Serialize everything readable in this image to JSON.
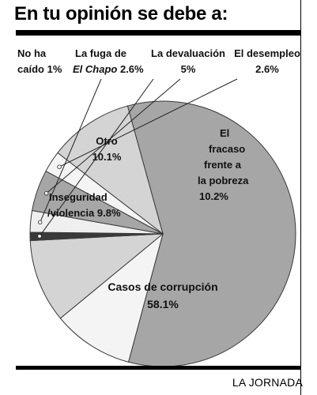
{
  "title": "En tu opinión se debe a:",
  "credit": "LA JORNADA",
  "chart_data": {
    "type": "pie",
    "title": "En tu opinión se debe a:",
    "slices": [
      {
        "label_lines": [
          "Casos de corrupción"
        ],
        "value_text": "58.1%",
        "value": 58.1,
        "color": "#a6a6a6"
      },
      {
        "label_lines": [
          "Inseguridad",
          "/violencia"
        ],
        "value_text": "9.8%",
        "value": 9.8,
        "color": "#f4f4f4"
      },
      {
        "label_lines": [
          "Otro"
        ],
        "value_text": "10.1%",
        "value": 10.1,
        "color": "#d4d4d4"
      },
      {
        "label_lines": [
          "No ha",
          "caído"
        ],
        "value_text": "1%",
        "value": 1,
        "color": "#3a3a3a"
      },
      {
        "label_lines": [
          "La fuga de",
          "El Chapo"
        ],
        "value_text": "2.6%",
        "value": 2.6,
        "color": "#efefef"
      },
      {
        "label_lines": [
          "La devaluación"
        ],
        "value_text": "5%",
        "value": 5,
        "color": "#a6a6a6"
      },
      {
        "label_lines": [
          "El desempleo"
        ],
        "value_text": "2.6%",
        "value": 2.6,
        "color": "#f4f4f4"
      },
      {
        "label_lines": [
          "El",
          "fracaso",
          "frente a",
          "la pobreza"
        ],
        "value_text": "10.2%",
        "value": 10.2,
        "color": "#d4d4d4"
      }
    ]
  }
}
